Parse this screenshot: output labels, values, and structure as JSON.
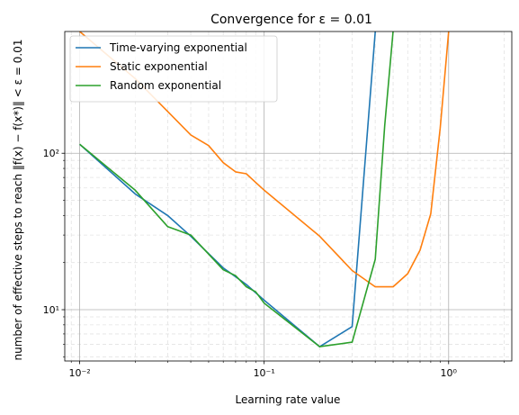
{
  "chart_data": {
    "type": "line",
    "title": "Convergence for ε =  0.01",
    "xlabel": "Learning rate value",
    "ylabel": "number of effective steps to reach ‖f(x) − f(x*)‖ < ε = 0.01",
    "xscale": "log",
    "yscale": "log",
    "xlim": [
      0.0083,
      2.2
    ],
    "ylim": [
      4.7,
      600
    ],
    "grid": {
      "major": true,
      "minor": true
    },
    "legend_position": "top-left",
    "x_ticks": [
      {
        "value": 0.01,
        "label": "10⁻²"
      },
      {
        "value": 0.1,
        "label": "10⁻¹"
      },
      {
        "value": 1,
        "label": "10⁰"
      }
    ],
    "y_ticks": [
      {
        "value": 10,
        "label": "10¹"
      },
      {
        "value": 100,
        "label": "10²"
      }
    ],
    "series": [
      {
        "name": "Time-varying exponential",
        "color": "#1f77b4",
        "x": [
          0.01,
          0.02,
          0.03,
          0.04,
          0.06,
          0.08,
          0.1,
          0.2,
          0.3,
          0.4,
          0.5
        ],
        "y": [
          114,
          55,
          40,
          29.5,
          18.5,
          14.5,
          11.5,
          5.8,
          7.8,
          600,
          2000
        ]
      },
      {
        "name": "Static exponential",
        "color": "#ff7f0e",
        "x": [
          0.01,
          0.02,
          0.03,
          0.04,
          0.05,
          0.06,
          0.07,
          0.08,
          0.09,
          0.1,
          0.2,
          0.3,
          0.4,
          0.5,
          0.6,
          0.7,
          0.8,
          0.9,
          1.0,
          1.1
        ],
        "y": [
          600,
          300,
          185,
          131,
          112,
          87,
          76,
          74,
          65,
          58,
          29.5,
          17.8,
          14,
          14,
          17,
          24,
          41,
          145,
          600,
          2000
        ]
      },
      {
        "name": "Random exponential",
        "color": "#2ca02c",
        "x": [
          0.01,
          0.02,
          0.03,
          0.04,
          0.06,
          0.07,
          0.08,
          0.09,
          0.1,
          0.2,
          0.3,
          0.4,
          0.45,
          0.5,
          0.55
        ],
        "y": [
          114,
          58,
          34,
          30,
          18,
          16.5,
          14,
          13,
          11,
          5.8,
          6.2,
          21,
          150,
          600,
          2000
        ]
      }
    ]
  }
}
